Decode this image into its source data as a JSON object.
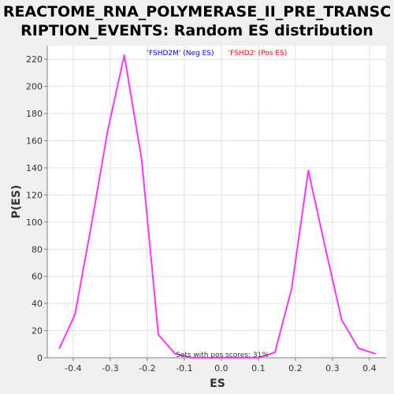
{
  "chart_data": {
    "type": "line",
    "title_lines": [
      "REACTOME_RNA_POLYMERASE_II_PRE_TRANSC",
      "RIPTION_EVENTS: Random ES distribution"
    ],
    "xlabel": "ES",
    "ylabel": "P(ES)",
    "xlim": [
      -0.47,
      0.445
    ],
    "ylim": [
      0,
      230
    ],
    "x_ticks": [
      -0.4,
      -0.3,
      -0.2,
      -0.1,
      0.0,
      0.1,
      0.2,
      0.3,
      0.4
    ],
    "x_tick_labels": [
      "-0.4",
      "-0.3",
      "-0.2",
      "-0.1",
      "0.0",
      "0.1",
      "0.2",
      "0.3",
      "0.4"
    ],
    "y_ticks": [
      0,
      20,
      40,
      60,
      80,
      100,
      120,
      140,
      160,
      180,
      200,
      220
    ],
    "y_tick_labels": [
      "0",
      "20",
      "40",
      "60",
      "80",
      "100",
      "120",
      "140",
      "160",
      "180",
      "200",
      "220"
    ],
    "grid": true,
    "legend": {
      "placement": "top",
      "entries": [
        {
          "label": "'FSHD2M' (Neg ES)",
          "color": "#0000ff"
        },
        {
          "label": "'FSHD2' (Pos ES)",
          "color": "#ff0000"
        }
      ]
    },
    "annotation": "Sets with pos scores: 31%",
    "series": [
      {
        "color": "#ff33ff",
        "x": [
          -0.437,
          -0.395,
          -0.352,
          -0.307,
          -0.262,
          -0.215,
          -0.17,
          -0.125,
          -0.08,
          -0.035,
          0.01,
          0.055,
          0.1,
          0.145,
          0.19,
          0.235,
          0.28,
          0.325,
          0.37,
          0.415
        ],
        "y": [
          7,
          32,
          96,
          167,
          223,
          146,
          17,
          3,
          0,
          0,
          0,
          0,
          0,
          4,
          51,
          138,
          82,
          28,
          7,
          3
        ]
      }
    ]
  },
  "colors": {
    "background": "#f0f0f0",
    "plot_background": "#ffffff",
    "grid": "#e0e0e0",
    "axis": "#808080"
  }
}
